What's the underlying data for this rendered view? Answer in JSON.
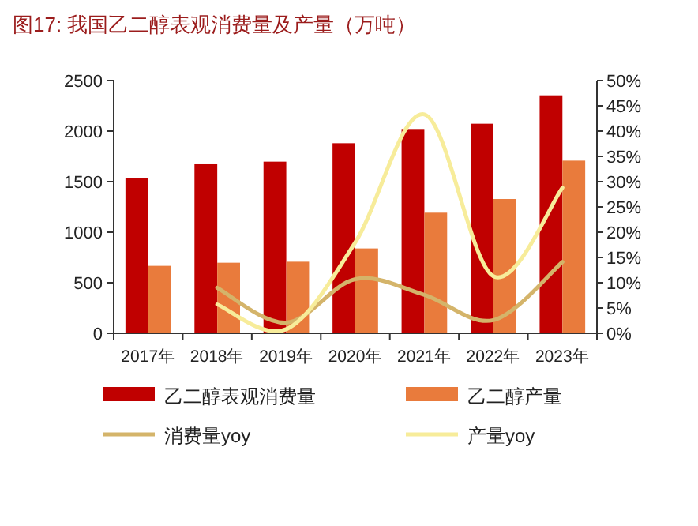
{
  "chart_data": {
    "type": "bar",
    "title": "图17:  我国乙二醇表观消费量及产量（万吨）",
    "categories": [
      "2017年",
      "2018年",
      "2019年",
      "2020年",
      "2021年",
      "2022年",
      "2023年"
    ],
    "series": [
      {
        "name": "乙二醇表观消费量",
        "color": "#c00000",
        "values": [
          1536,
          1672,
          1698,
          1880,
          2021,
          2073,
          2354
        ]
      },
      {
        "name": "乙二醇产量",
        "color": "#e97b3c",
        "values": [
          667,
          698,
          708,
          839,
          1193,
          1328,
          1708
        ]
      },
      {
        "name": "消费量yoy",
        "type": "line",
        "axis": "y2",
        "color": "#d4b46a",
        "values": [
          null,
          9.0,
          2.1,
          10.7,
          7.6,
          2.6,
          14.1
        ]
      },
      {
        "name": "产量yoy",
        "type": "line",
        "axis": "y2",
        "color": "#f7ec9a",
        "values": [
          null,
          5.7,
          0.8,
          18.0,
          43.3,
          11.3,
          28.8
        ]
      }
    ],
    "ylim": [
      0,
      2500
    ],
    "yticks": [
      0,
      500,
      1000,
      1500,
      2000,
      2500
    ],
    "y2lim": [
      0,
      50
    ],
    "y2ticks": [
      {
        "value": 0,
        "label": "0%"
      },
      {
        "value": 5,
        "label": "5%"
      },
      {
        "value": 10,
        "label": "10%"
      },
      {
        "value": 15,
        "label": "15%"
      },
      {
        "value": 20,
        "label": "20%"
      },
      {
        "value": 25,
        "label": "25%"
      },
      {
        "value": 30,
        "label": "30%"
      },
      {
        "value": 35,
        "label": "35%"
      },
      {
        "value": 40,
        "label": "40%"
      },
      {
        "value": 45,
        "label": "45%"
      },
      {
        "value": 50,
        "label": "50%"
      }
    ],
    "grid": false,
    "legend": "bottom"
  }
}
